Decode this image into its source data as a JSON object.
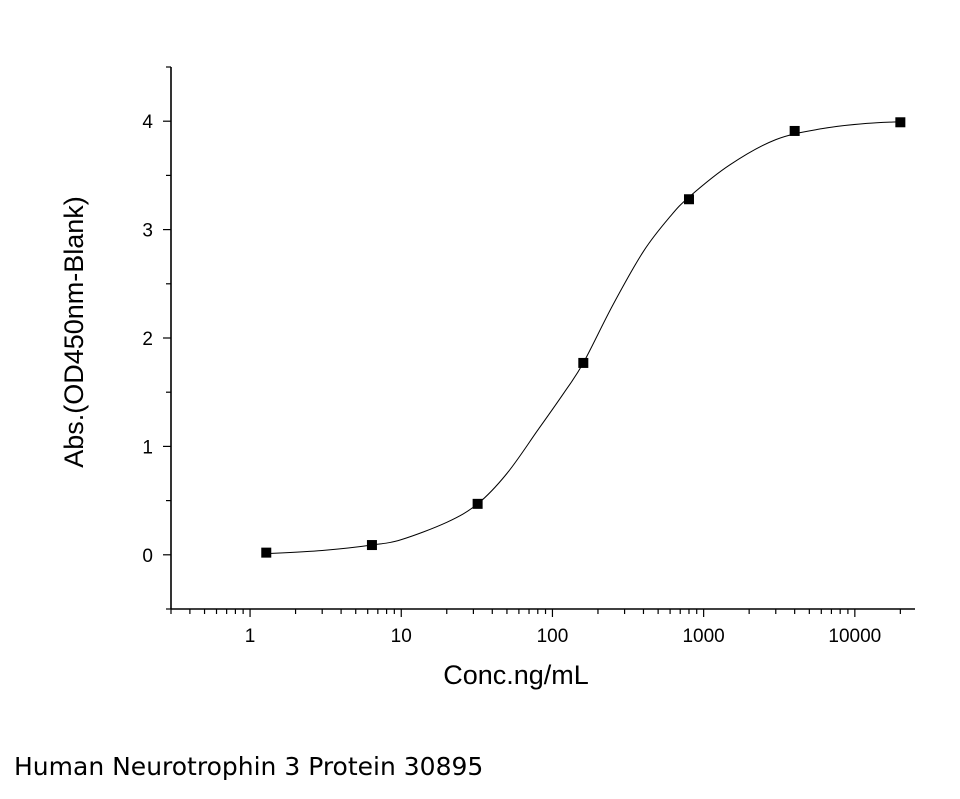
{
  "chart_data": {
    "type": "scatter",
    "xlabel": "Conc.ng/mL",
    "ylabel": "Abs.(OD450nm-Blank)",
    "xscale": "log",
    "xlim": [
      0.3,
      25000
    ],
    "ylim": [
      -0.5,
      4.5
    ],
    "xticks": [
      {
        "value": 1,
        "label": "1"
      },
      {
        "value": 10,
        "label": "10"
      },
      {
        "value": 100,
        "label": "100"
      },
      {
        "value": 1000,
        "label": "1000"
      },
      {
        "value": 10000,
        "label": "10000"
      }
    ],
    "yticks": [
      {
        "value": 0,
        "label": "0"
      },
      {
        "value": 1,
        "label": "1"
      },
      {
        "value": 2,
        "label": "2"
      },
      {
        "value": 3,
        "label": "3"
      },
      {
        "value": 4,
        "label": "4"
      }
    ],
    "points": [
      {
        "x": 1.28,
        "y": 0.02
      },
      {
        "x": 6.4,
        "y": 0.09
      },
      {
        "x": 32,
        "y": 0.47
      },
      {
        "x": 160,
        "y": 1.77
      },
      {
        "x": 800,
        "y": 3.28
      },
      {
        "x": 4000,
        "y": 3.91
      },
      {
        "x": 20000,
        "y": 3.99
      }
    ],
    "curve": [
      {
        "x": 1.28,
        "y": 0.01
      },
      {
        "x": 3,
        "y": 0.04
      },
      {
        "x": 6.4,
        "y": 0.09
      },
      {
        "x": 10,
        "y": 0.14
      },
      {
        "x": 20,
        "y": 0.3
      },
      {
        "x": 32,
        "y": 0.47
      },
      {
        "x": 50,
        "y": 0.75
      },
      {
        "x": 80,
        "y": 1.15
      },
      {
        "x": 120,
        "y": 1.5
      },
      {
        "x": 160,
        "y": 1.77
      },
      {
        "x": 250,
        "y": 2.3
      },
      {
        "x": 400,
        "y": 2.8
      },
      {
        "x": 600,
        "y": 3.12
      },
      {
        "x": 800,
        "y": 3.3
      },
      {
        "x": 1500,
        "y": 3.6
      },
      {
        "x": 3000,
        "y": 3.83
      },
      {
        "x": 6000,
        "y": 3.93
      },
      {
        "x": 12000,
        "y": 3.98
      },
      {
        "x": 20000,
        "y": 3.995
      }
    ],
    "grid": false,
    "legend": "none",
    "marker": "square",
    "color": "#000000"
  },
  "caption": "Human Neurotrophin 3 Protein 30895"
}
